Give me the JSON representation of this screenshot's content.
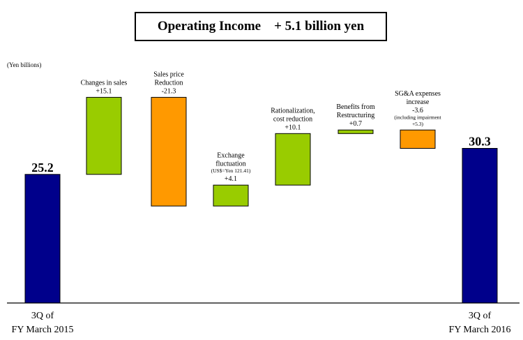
{
  "chart_data": {
    "type": "bar",
    "subtype": "waterfall",
    "title": "Operating Income    + 5.1 billion yen",
    "unit_label": "(Yen billions)",
    "ylim": [
      0,
      32
    ],
    "grid": false,
    "legend": "none",
    "colors": {
      "total": "#00008b",
      "increase": "#99cc00",
      "decrease": "#ff9900",
      "baseline": "#000000"
    },
    "steps": [
      {
        "kind": "total",
        "value": 25.2,
        "label_lines": [
          "25.2"
        ],
        "cat_lines": [
          "3Q of",
          "FY March 2015"
        ]
      },
      {
        "kind": "delta",
        "value": 15.1,
        "label_lines": [
          "Changes in sales",
          "+15.1"
        ],
        "cat_lines": []
      },
      {
        "kind": "delta",
        "value": -21.3,
        "label_lines": [
          "Sales price",
          "Reduction",
          "-21.3"
        ],
        "cat_lines": []
      },
      {
        "kind": "delta",
        "value": 4.1,
        "label_lines": [
          "Exchange",
          "fluctuation",
          "(US$=Yen 121.41)",
          "+4.1"
        ],
        "cat_lines": []
      },
      {
        "kind": "delta",
        "value": 10.1,
        "label_lines": [
          "Rationalization,",
          "cost reduction",
          "+10.1"
        ],
        "cat_lines": []
      },
      {
        "kind": "delta",
        "value": 0.7,
        "label_lines": [
          "Benefits from",
          "Restructuring",
          "+0.7"
        ],
        "cat_lines": []
      },
      {
        "kind": "delta",
        "value": -3.6,
        "label_lines": [
          "SG&A expenses",
          "increase",
          "-3.6",
          "(including impairment",
          "+5.3)"
        ],
        "cat_lines": []
      },
      {
        "kind": "total",
        "value": 30.3,
        "label_lines": [
          "30.3"
        ],
        "cat_lines": [
          "3Q of",
          "FY March 2016"
        ]
      }
    ]
  }
}
